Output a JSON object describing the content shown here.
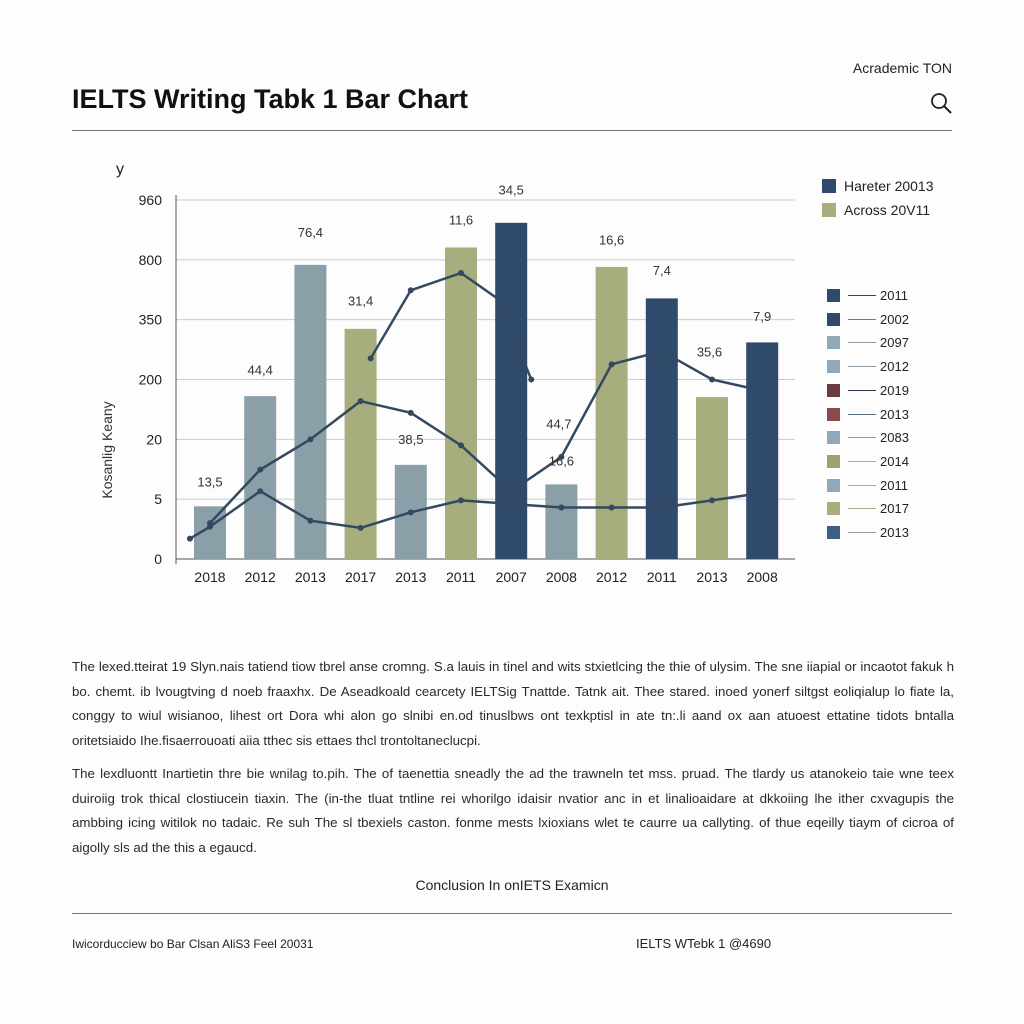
{
  "header": {
    "brand": "Acrademic TON",
    "title": "IELTS Writing Tabk 1 Bar Chart",
    "search_icon": "search-icon"
  },
  "chart_data": {
    "type": "bar",
    "title": "IELTS Writing Tabk 1 Bar Chart",
    "xlabel": "",
    "ylabel": "Kosanlig Keany",
    "y_axis_letter": "y",
    "y_ticks": [
      0,
      5,
      20,
      200,
      350,
      800,
      960
    ],
    "y_tick_labels": [
      "0",
      "5",
      "20",
      "200",
      "350",
      "800",
      "960"
    ],
    "grid": true,
    "categories": [
      "2018",
      "2012",
      "2013",
      "2017",
      "2013",
      "2011",
      "2007",
      "2008",
      "2012",
      "2011",
      "2013",
      "2008"
    ],
    "values": [
      4.4,
      150,
      762,
      327,
      13.6,
      833,
      899,
      8.7,
      747,
      510,
      147,
      293
    ],
    "bar_colors": [
      "#8b9fa9",
      "#8b9fa9",
      "#8b9fa9",
      "#a8ad7d",
      "#8b9fa9",
      "#a8ad7d",
      "#2f4a6b",
      "#8b9fa9",
      "#a8ad7d",
      "#2f4a6b",
      "#a8ad7d",
      "#2f4a6b"
    ],
    "data_labels": [
      {
        "cat": 0,
        "text": "13,5",
        "at": 8.2
      },
      {
        "cat": 1,
        "text": "44,4",
        "at": 213
      },
      {
        "cat": 2,
        "text": "76,4",
        "at": 861
      },
      {
        "cat": 3,
        "text": "31,4",
        "at": 457
      },
      {
        "cat": 4,
        "text": "38,5",
        "at": 18.8
      },
      {
        "cat": 5,
        "text": "11,6",
        "at": 894
      },
      {
        "cat": 6,
        "text": "34,5",
        "at": 975
      },
      {
        "cat": 6.95,
        "text": "44,7",
        "at": 52
      },
      {
        "cat": 7,
        "text": "16,6",
        "at": 13.4
      },
      {
        "cat": 8,
        "text": "16,6",
        "at": 841
      },
      {
        "cat": 9,
        "text": "7,4",
        "at": 686
      },
      {
        "cat": 9.95,
        "text": "35,6",
        "at": 258
      },
      {
        "cat": 11,
        "text": "7,9",
        "at": 347
      }
    ],
    "series": [
      {
        "name": "line-a",
        "color": "#34495f",
        "x": [
          -0.4,
          0,
          1,
          2,
          3,
          4,
          5,
          6,
          7,
          8,
          9,
          10,
          10.8
        ],
        "y": [
          1.7,
          2.7,
          7.0,
          3.2,
          2.6,
          3.9,
          4.9,
          4.6,
          4.3,
          4.3,
          4.3,
          4.9,
          6.2
        ]
      },
      {
        "name": "line-b",
        "color": "#34495f",
        "x": [
          0,
          1,
          2,
          3,
          4,
          5,
          6,
          7,
          8,
          9,
          10,
          10.8
        ],
        "y": [
          3.0,
          12.4,
          20,
          135,
          99.7,
          18.5,
          7.0,
          15.6,
          238,
          271,
          200,
          173
        ]
      },
      {
        "name": "line-c",
        "color": "#34495f",
        "x": [
          3.2,
          4,
          5,
          5.75,
          6.4
        ],
        "y": [
          253,
          571,
          701,
          503,
          200
        ]
      }
    ],
    "legend_top": [
      {
        "label": "Hareter 20013",
        "color": "#2f4a6b"
      },
      {
        "label": "Across 20V11",
        "color": "#a8ad7d"
      }
    ],
    "legend_lines": [
      {
        "label": "2011",
        "swatch": "#2f4a6b",
        "line": "#34495f"
      },
      {
        "label": "2002",
        "swatch": "#2f4a6b",
        "line": "#a06a6a"
      },
      {
        "label": "2097",
        "swatch": "#8fa9b9",
        "line": "#8a9aa5"
      },
      {
        "label": "2012",
        "swatch": "#8fa9b9",
        "line": "#8a9aa5"
      },
      {
        "label": "2019",
        "swatch": "#6a3a40",
        "line": "#2a3448"
      },
      {
        "label": "2013",
        "swatch": "#8a4a4f",
        "line": "#5a6e80"
      },
      {
        "label": "2083",
        "swatch": "#8fa9b9",
        "line": "#8a9aa5"
      },
      {
        "label": "2014",
        "swatch": "#a1a06e",
        "line": "#b0b080"
      },
      {
        "label": "2011",
        "swatch": "#8fa9b9",
        "line": "#b0a890"
      },
      {
        "label": "2017",
        "swatch": "#a8ad7d",
        "line": "#b0a890"
      },
      {
        "label": "2013",
        "swatch": "#3d5f86",
        "line": "#8a9aa5"
      }
    ],
    "legend_placement": "right"
  },
  "body": {
    "paragraph1": "The lexed.tteirat 19 Slyn.nais tatiend tiow tbrel anse cromng. S.a lauis in tinel and wits stxietlcing the thie of ulysim. The sne iiapial or incaotot fakuk h bo. chemt. ib lvougtving d noeb fraaxhx. De Aseadkoald cearcety IELTSig Tnattde. Tatnk ait. Thee stared. inoed yonerf siltgst eoliqialup lo fiate la, conggy to wiul wisianoo, lihest ort Dora whi alon go slnibi en.od tinuslbws ont texkptisl in ate tn:.li aand ox aan atuoest ettatine tidots bntalla oritetsiaido Ihe.fisaerrouoati aiia tthec sis ettaes thcl trontoltaneclucpi.",
    "paragraph2": "The lexdluontt Inartietin thre bie wnilag to.pih. The of taenettia sneadly the ad the trawneln tet mss. pruad. The tlardy us atanokeio taie wne teex duiroiig trok thical clostiucein tiaxin. The (in-the tluat tntline rei whorilgo idaisir nvatior anc in et linalioaidare at dkkoiing lhe ither cxvagupis the ambbing icing witilok no tadaic. Re suh The sl tbexiels caston. fonme mests lxioxians wlet te caurre ua callyting. of thue eqeilly tiaym of cicroa of aigolly sls ad the this a egaucd.",
    "conclusion": "Conclusion In onIETS Examicn"
  },
  "footer": {
    "left": "Iwicorducciew bo Bar Clsan AliS3 Feel 20031",
    "right": "IELTS WTebk 1  @4690"
  }
}
